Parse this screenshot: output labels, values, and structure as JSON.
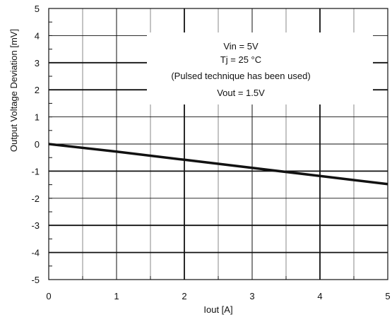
{
  "chart_data": {
    "type": "line",
    "title": "",
    "xlabel": "Iout [A]",
    "ylabel": "Output Voltage Deviation [mV]",
    "xlim": [
      0,
      5
    ],
    "ylim": [
      -5,
      5
    ],
    "x_ticks": [
      "0",
      "1",
      "2",
      "3",
      "4",
      "5"
    ],
    "y_ticks": [
      "5",
      "4",
      "3",
      "2",
      "1",
      "0",
      "-1",
      "-2",
      "-3",
      "-4",
      "-5"
    ],
    "grid": true,
    "series": [
      {
        "x": [
          0,
          1,
          2,
          3,
          4,
          5
        ],
        "y": [
          0,
          -0.28,
          -0.58,
          -0.88,
          -1.18,
          -1.48
        ],
        "color": "#111111"
      }
    ],
    "annotations": [
      "Vin = 5V",
      "Tj = 25 °C",
      "(Pulsed technique has been used)",
      "Vout = 1.5V"
    ]
  }
}
